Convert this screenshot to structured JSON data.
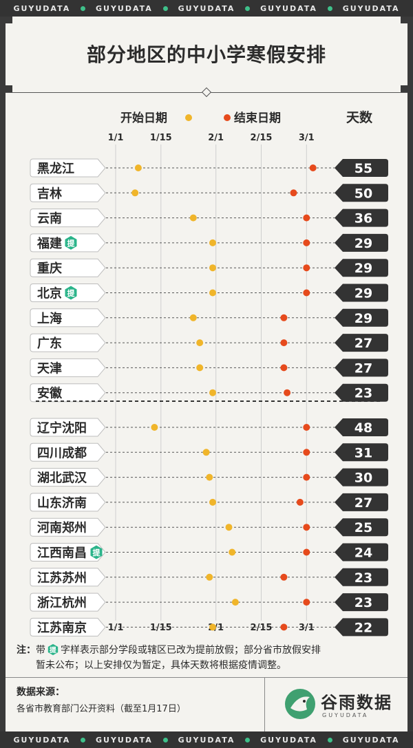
{
  "brand_band": [
    "GUYUDATA",
    "GUYUDATA",
    "GUYUDATA",
    "GUYUDATA",
    "GUYUDATA"
  ],
  "title": "部分地区的中小学寒假安排",
  "legend": {
    "start": "开始日期",
    "end": "结束日期",
    "days_header": "天数"
  },
  "colors": {
    "accent_start": "#f0b52a",
    "accent_end": "#e64a1c",
    "hint_badge": "#2bb48a",
    "days_bg": "#333333"
  },
  "note": {
    "prefix": "注：",
    "line1_a": "带",
    "line1_b": "字样表示部分学段或辖区已改为提前放假；部分省市放假安排",
    "line2": "暂未公布；以上安排仅为暂定，具体天数将根据疫情调整。"
  },
  "hint_badge_text": "提",
  "source": {
    "label": "数据来源：",
    "text": "各省市教育部门公开资料（截至1月17日）"
  },
  "logo": {
    "name": "谷雨数据",
    "sub": "GUYUDATA"
  },
  "chart_data": {
    "type": "range-bar",
    "x_axis": {
      "ticks": [
        "1/1",
        "1/15",
        "2/1",
        "2/15",
        "3/1"
      ],
      "tick_day": [
        0,
        14,
        31,
        45,
        59
      ]
    },
    "groups": [
      {
        "name": "",
        "rows": [
          {
            "region": "黑龙江",
            "start": 7,
            "end": 61,
            "days": 55,
            "hint": false
          },
          {
            "region": "吉林",
            "start": 6,
            "end": 55,
            "days": 50,
            "hint": false
          },
          {
            "region": "云南",
            "start": 24,
            "end": 59,
            "days": 36,
            "hint": false
          },
          {
            "region": "福建",
            "start": 30,
            "end": 59,
            "days": 29,
            "hint": true
          },
          {
            "region": "重庆",
            "start": 30,
            "end": 59,
            "days": 29,
            "hint": false
          },
          {
            "region": "北京",
            "start": 30,
            "end": 59,
            "days": 29,
            "hint": true
          },
          {
            "region": "上海",
            "start": 24,
            "end": 52,
            "days": 29,
            "hint": false
          },
          {
            "region": "广东",
            "start": 26,
            "end": 52,
            "days": 27,
            "hint": false
          },
          {
            "region": "天津",
            "start": 26,
            "end": 52,
            "days": 27,
            "hint": false
          },
          {
            "region": "安徽",
            "start": 30,
            "end": 53,
            "days": 23,
            "hint": false
          }
        ]
      },
      {
        "name": "",
        "rows": [
          {
            "region": "辽宁沈阳",
            "start": 12,
            "end": 59,
            "days": 48,
            "hint": false
          },
          {
            "region": "四川成都",
            "start": 28,
            "end": 59,
            "days": 31,
            "hint": false
          },
          {
            "region": "湖北武汉",
            "start": 29,
            "end": 59,
            "days": 30,
            "hint": false
          },
          {
            "region": "山东济南",
            "start": 30,
            "end": 57,
            "days": 27,
            "hint": false
          },
          {
            "region": "河南郑州",
            "start": 35,
            "end": 59,
            "days": 25,
            "hint": false
          },
          {
            "region": "江西南昌",
            "start": 36,
            "end": 59,
            "days": 24,
            "hint": true
          },
          {
            "region": "江苏苏州",
            "start": 29,
            "end": 52,
            "days": 23,
            "hint": false
          },
          {
            "region": "浙江杭州",
            "start": 37,
            "end": 59,
            "days": 23,
            "hint": false
          },
          {
            "region": "江苏南京",
            "start": 30,
            "end": 52,
            "days": 22,
            "hint": false
          }
        ]
      }
    ]
  }
}
